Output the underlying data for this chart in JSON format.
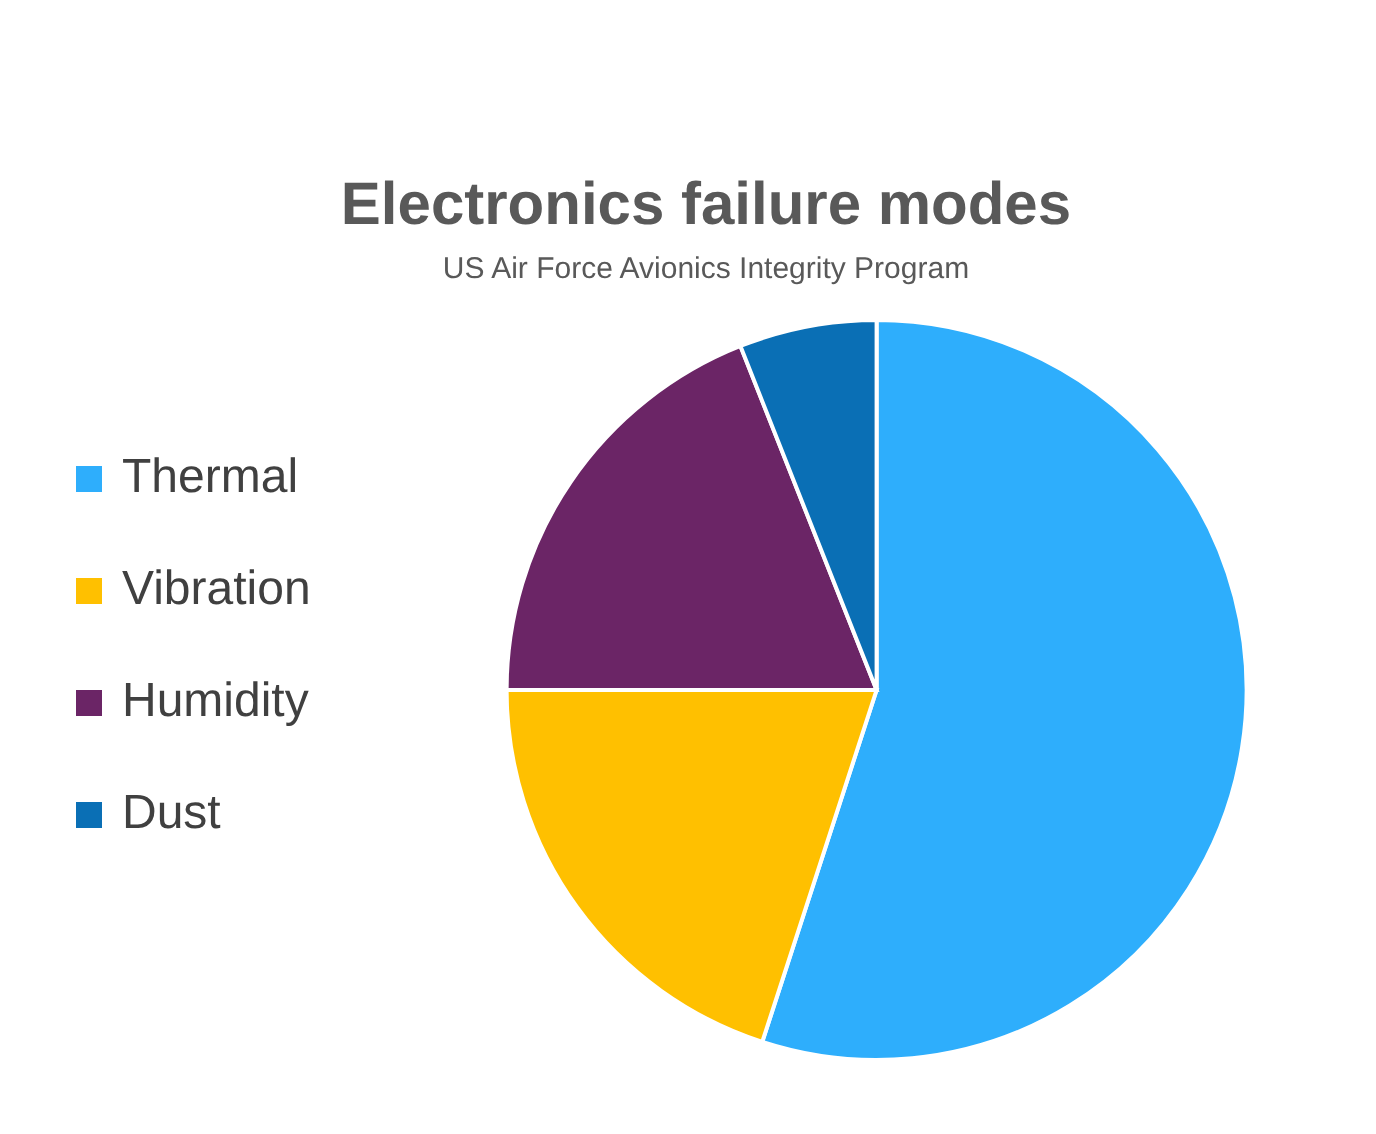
{
  "chart_data": {
    "type": "pie",
    "title": "Electronics failure modes",
    "subtitle": "US Air Force Avionics Integrity Program",
    "categories": [
      "Thermal",
      "Vibration",
      "Humidity",
      "Dust"
    ],
    "values": [
      55,
      20,
      19,
      6
    ],
    "colors": [
      "#2eaefc",
      "#ffc000",
      "#6b2566",
      "#0a6fb5"
    ],
    "legend": "left"
  }
}
